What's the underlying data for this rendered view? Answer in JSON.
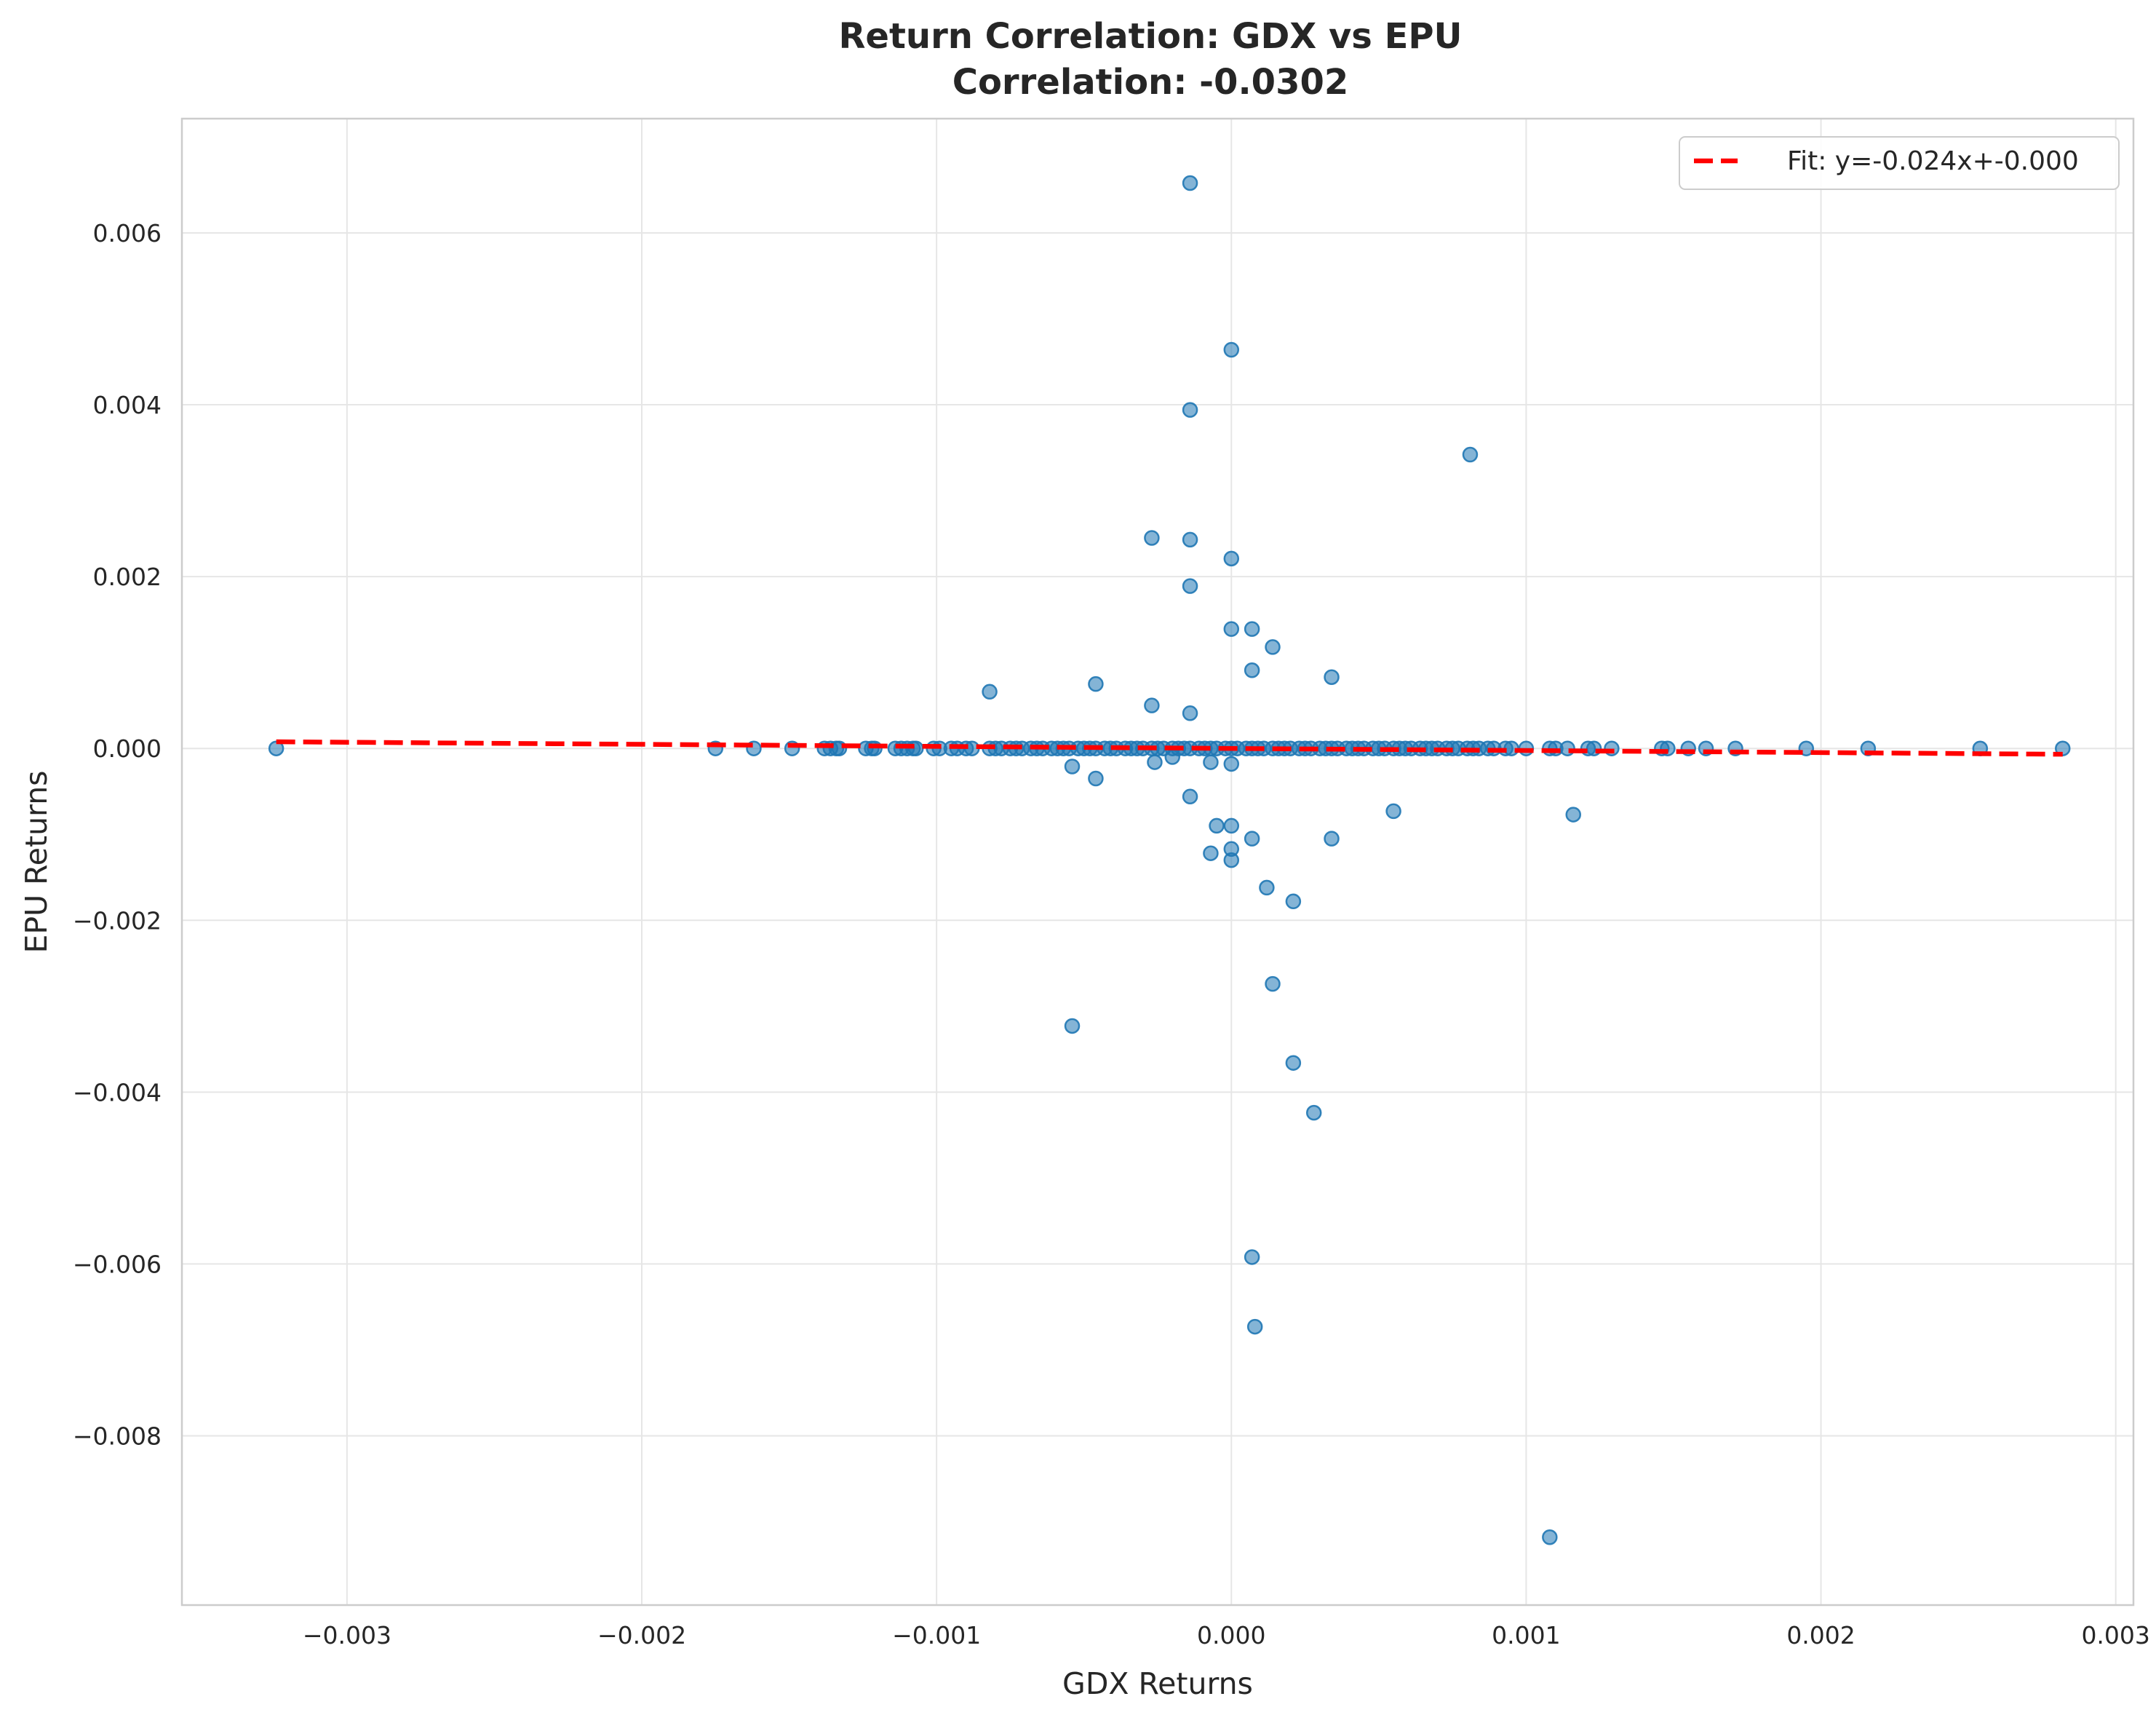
{
  "chart_data": {
    "type": "scatter",
    "title_line1": "Return Correlation: GDX vs EPU",
    "title_line2": "Correlation: -0.0302",
    "xlabel": "GDX Returns",
    "ylabel": "EPU Returns",
    "xlim": [
      -0.00356,
      0.00306
    ],
    "ylim": [
      -0.00997,
      0.00733
    ],
    "xticks": [
      -0.003,
      -0.002,
      -0.001,
      0.0,
      0.001,
      0.002,
      0.003
    ],
    "xtick_labels": [
      "−0.003",
      "−0.002",
      "−0.001",
      "0.000",
      "0.001",
      "0.002",
      "0.003"
    ],
    "yticks": [
      0.006,
      0.004,
      0.002,
      0.0,
      -0.002,
      -0.004,
      -0.006,
      -0.008
    ],
    "ytick_labels": [
      "0.006",
      "0.004",
      "0.002",
      "0.000",
      "−0.002",
      "−0.004",
      "−0.006",
      "−0.008"
    ],
    "grid": true,
    "legend_position": "top-right",
    "point_color": "#1f77b4",
    "fit_color": "#ff0000",
    "fit": {
      "label": "Fit: y=-0.024x+-0.000",
      "slope": -0.024,
      "intercept": 0.0,
      "x_range": [
        -0.00324,
        0.00282
      ]
    },
    "series": [
      {
        "points": [
          [
            -0.00324,
            0.0
          ],
          [
            -0.00175,
            0.0
          ],
          [
            -0.00162,
            0.0
          ],
          [
            -0.00149,
            0.0
          ],
          [
            -0.00138,
            0.0
          ],
          [
            -0.00136,
            0.0
          ],
          [
            -0.00134,
            0.0
          ],
          [
            -0.00133,
            0.0
          ],
          [
            -0.00124,
            0.0
          ],
          [
            -0.00122,
            0.0
          ],
          [
            -0.00121,
            0.0
          ],
          [
            -0.00114,
            0.0
          ],
          [
            -0.00112,
            0.0
          ],
          [
            -0.0011,
            0.0
          ],
          [
            -0.00108,
            0.0
          ],
          [
            -0.00107,
            0.0
          ],
          [
            -0.00101,
            0.0
          ],
          [
            -0.00099,
            0.0
          ],
          [
            -0.00095,
            0.0
          ],
          [
            -0.00093,
            0.0
          ],
          [
            -0.0009,
            0.0
          ],
          [
            -0.00088,
            0.0
          ],
          [
            -0.00082,
            0.0
          ],
          [
            -0.0008,
            0.0
          ],
          [
            -0.00078,
            0.0
          ],
          [
            -0.00075,
            0.0
          ],
          [
            -0.00073,
            0.0
          ],
          [
            -0.00071,
            0.0
          ],
          [
            -0.00068,
            0.0
          ],
          [
            -0.00066,
            0.0
          ],
          [
            -0.00064,
            0.0
          ],
          [
            -0.00061,
            0.0
          ],
          [
            -0.00059,
            0.0
          ],
          [
            -0.00057,
            0.0
          ],
          [
            -0.00055,
            0.0
          ],
          [
            -0.00052,
            0.0
          ],
          [
            -0.0005,
            0.0
          ],
          [
            -0.00048,
            0.0
          ],
          [
            -0.00046,
            0.0
          ],
          [
            -0.00043,
            0.0
          ],
          [
            -0.00041,
            0.0
          ],
          [
            -0.00039,
            0.0
          ],
          [
            -0.00036,
            0.0
          ],
          [
            -0.00034,
            0.0
          ],
          [
            -0.00032,
            0.0
          ],
          [
            -0.0003,
            0.0
          ],
          [
            -0.00027,
            0.0
          ],
          [
            -0.00025,
            0.0
          ],
          [
            -0.00023,
            0.0
          ],
          [
            -0.0002,
            0.0
          ],
          [
            -0.00018,
            0.0
          ],
          [
            -0.00016,
            0.0
          ],
          [
            -0.00014,
            0.0
          ],
          [
            -0.00011,
            0.0
          ],
          [
            -9e-05,
            0.0
          ],
          [
            -7e-05,
            0.0
          ],
          [
            -5e-05,
            0.0
          ],
          [
            -2e-05,
            0.0
          ],
          [
            0.0,
            0.0
          ],
          [
            2e-05,
            0.0
          ],
          [
            5e-05,
            0.0
          ],
          [
            7e-05,
            0.0
          ],
          [
            9e-05,
            0.0
          ],
          [
            0.00011,
            0.0
          ],
          [
            0.00014,
            0.0
          ],
          [
            0.00016,
            0.0
          ],
          [
            0.00018,
            0.0
          ],
          [
            0.0002,
            0.0
          ],
          [
            0.00023,
            0.0
          ],
          [
            0.00025,
            0.0
          ],
          [
            0.00027,
            0.0
          ],
          [
            0.0003,
            0.0
          ],
          [
            0.00032,
            0.0
          ],
          [
            0.00034,
            0.0
          ],
          [
            0.00036,
            0.0
          ],
          [
            0.00039,
            0.0
          ],
          [
            0.00041,
            0.0
          ],
          [
            0.00043,
            0.0
          ],
          [
            0.00045,
            0.0
          ],
          [
            0.00048,
            0.0
          ],
          [
            0.0005,
            0.0
          ],
          [
            0.00052,
            0.0
          ],
          [
            0.00055,
            0.0
          ],
          [
            0.00057,
            0.0
          ],
          [
            0.00059,
            0.0
          ],
          [
            0.00061,
            0.0
          ],
          [
            0.00064,
            0.0
          ],
          [
            0.00066,
            0.0
          ],
          [
            0.00068,
            0.0
          ],
          [
            0.0007,
            0.0
          ],
          [
            0.00073,
            0.0
          ],
          [
            0.00075,
            0.0
          ],
          [
            0.00077,
            0.0
          ],
          [
            0.0008,
            0.0
          ],
          [
            0.00082,
            0.0
          ],
          [
            0.00084,
            0.0
          ],
          [
            0.00087,
            0.0
          ],
          [
            0.00089,
            0.0
          ],
          [
            0.00093,
            0.0
          ],
          [
            0.00095,
            0.0
          ],
          [
            0.001,
            0.0
          ],
          [
            0.00108,
            0.0
          ],
          [
            0.0011,
            0.0
          ],
          [
            0.00114,
            0.0
          ],
          [
            0.00121,
            0.0
          ],
          [
            0.00123,
            0.0
          ],
          [
            0.00129,
            0.0
          ],
          [
            0.00146,
            0.0
          ],
          [
            0.00148,
            0.0
          ],
          [
            0.00155,
            0.0
          ],
          [
            0.00161,
            0.0
          ],
          [
            0.00171,
            0.0
          ],
          [
            0.00195,
            0.0
          ],
          [
            0.00216,
            0.0
          ],
          [
            0.00254,
            0.0
          ],
          [
            0.00282,
            0.0
          ],
          [
            -0.00014,
            0.00658
          ],
          [
            0.0,
            0.00464
          ],
          [
            -0.00014,
            0.00394
          ],
          [
            0.00081,
            0.00342
          ],
          [
            -0.00027,
            0.00245
          ],
          [
            -0.00014,
            0.00243
          ],
          [
            0.0,
            0.00221
          ],
          [
            -0.00014,
            0.00189
          ],
          [
            0.0,
            0.00139
          ],
          [
            7e-05,
            0.00139
          ],
          [
            0.00014,
            0.00118
          ],
          [
            7e-05,
            0.00091
          ],
          [
            0.00034,
            0.00083
          ],
          [
            -0.00046,
            0.00075
          ],
          [
            -0.00082,
            0.00066
          ],
          [
            -0.00027,
            0.0005
          ],
          [
            -0.00014,
            0.00041
          ],
          [
            -0.00054,
            -0.00021
          ],
          [
            -0.00046,
            -0.00035
          ],
          [
            -0.00026,
            -0.00016
          ],
          [
            -0.0002,
            -0.0001
          ],
          [
            -7e-05,
            -0.00016
          ],
          [
            0.0,
            -0.00018
          ],
          [
            -0.00014,
            -0.00056
          ],
          [
            -5e-05,
            -0.0009
          ],
          [
            0.0,
            -0.0009
          ],
          [
            7e-05,
            -0.00105
          ],
          [
            0.00034,
            -0.00105
          ],
          [
            0.00055,
            -0.00073
          ],
          [
            0.00116,
            -0.00077
          ],
          [
            -7e-05,
            -0.00122
          ],
          [
            0.0,
            -0.00117
          ],
          [
            0.0,
            -0.0013
          ],
          [
            0.00012,
            -0.00162
          ],
          [
            0.00021,
            -0.00178
          ],
          [
            0.00014,
            -0.00274
          ],
          [
            -0.00054,
            -0.00323
          ],
          [
            0.00021,
            -0.00366
          ],
          [
            0.00028,
            -0.00424
          ],
          [
            7e-05,
            -0.00592
          ],
          [
            8e-05,
            -0.00673
          ],
          [
            0.00108,
            -0.00918
          ]
        ]
      }
    ]
  }
}
